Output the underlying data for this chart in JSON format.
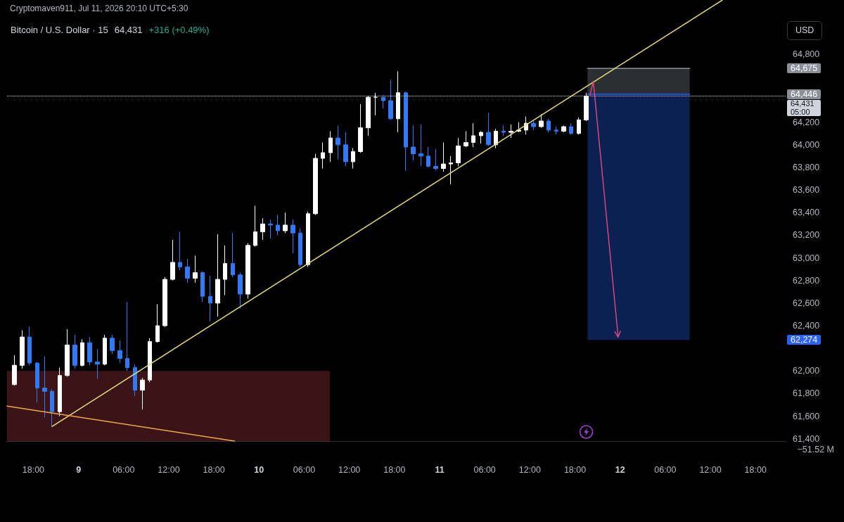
{
  "chart_data": [
    {
      "type": "candlestick",
      "title": "Bitcoin / U.S. Dollar · 15",
      "subtitle": "64,431",
      "ylabel": "USD",
      "annotations": [
        "Cryptomaven911, Jul 11, 2026 20:10 UTC+5:30",
        "+316 (+0.49%)"
      ],
      "x": [
        "2026-07-08T15:30",
        "2026-07-08T16:30",
        "2026-07-08T17:30",
        "2026-07-08T18:30",
        "2026-07-08T19:30",
        "2026-07-08T20:30",
        "2026-07-08T21:30",
        "2026-07-08T22:30",
        "2026-07-08T23:30",
        "2026-07-09T00:30",
        "2026-07-09T01:30",
        "2026-07-09T02:30",
        "2026-07-09T03:30",
        "2026-07-09T04:30",
        "2026-07-09T05:30",
        "2026-07-09T06:30",
        "2026-07-09T07:30",
        "2026-07-09T08:30",
        "2026-07-09T09:30",
        "2026-07-09T10:30",
        "2026-07-09T11:30",
        "2026-07-09T12:30",
        "2026-07-09T13:30",
        "2026-07-09T14:30",
        "2026-07-09T15:30",
        "2026-07-09T16:30",
        "2026-07-09T17:30",
        "2026-07-09T18:30",
        "2026-07-09T19:30",
        "2026-07-09T20:30",
        "2026-07-09T21:30",
        "2026-07-09T22:30",
        "2026-07-09T23:30",
        "2026-07-10T00:30",
        "2026-07-10T01:30",
        "2026-07-10T02:30",
        "2026-07-10T03:30",
        "2026-07-10T04:30",
        "2026-07-10T05:30",
        "2026-07-10T06:30",
        "2026-07-10T07:30",
        "2026-07-10T08:30",
        "2026-07-10T09:30",
        "2026-07-10T10:30",
        "2026-07-10T11:30",
        "2026-07-10T12:30",
        "2026-07-10T13:30",
        "2026-07-10T14:30",
        "2026-07-10T15:30",
        "2026-07-10T16:30",
        "2026-07-10T17:30",
        "2026-07-10T18:30",
        "2026-07-10T19:30",
        "2026-07-10T20:30",
        "2026-07-10T21:30",
        "2026-07-10T22:30",
        "2026-07-10T23:30",
        "2026-07-11T00:30",
        "2026-07-11T01:30",
        "2026-07-11T02:30",
        "2026-07-11T03:30",
        "2026-07-11T04:30",
        "2026-07-11T05:30",
        "2026-07-11T06:30",
        "2026-07-11T07:30",
        "2026-07-11T08:30",
        "2026-07-11T09:30",
        "2026-07-11T10:30",
        "2026-07-11T11:30",
        "2026-07-11T12:30",
        "2026-07-11T13:30",
        "2026-07-11T14:30",
        "2026-07-11T15:30",
        "2026-07-11T16:30",
        "2026-07-11T17:30",
        "2026-07-11T18:30",
        "2026-07-11T19:30"
      ],
      "ohlc": [
        [
          61880,
          62140,
          61870,
          62050
        ],
        [
          62050,
          62360,
          62020,
          62300
        ],
        [
          62300,
          62390,
          62050,
          62070
        ],
        [
          62070,
          62080,
          61720,
          61850
        ],
        [
          61850,
          62130,
          61590,
          61820
        ],
        [
          61820,
          61840,
          61510,
          61640
        ],
        [
          61640,
          62030,
          61600,
          61960
        ],
        [
          61960,
          62370,
          61950,
          62230
        ],
        [
          62230,
          62320,
          62020,
          62050
        ],
        [
          62050,
          62280,
          62040,
          62250
        ],
        [
          62250,
          62300,
          62050,
          62080
        ],
        [
          62080,
          62190,
          61930,
          62060
        ],
        [
          62060,
          62320,
          62050,
          62290
        ],
        [
          62290,
          62320,
          62150,
          62180
        ],
        [
          62180,
          62270,
          62070,
          62110
        ],
        [
          62110,
          62610,
          62000,
          62030
        ],
        [
          62030,
          62060,
          61780,
          61830
        ],
        [
          61830,
          61940,
          61660,
          61920
        ],
        [
          61920,
          62290,
          61900,
          62260
        ],
        [
          62260,
          62590,
          62250,
          62400
        ],
        [
          62400,
          62830,
          62390,
          62810
        ],
        [
          62810,
          63160,
          62800,
          62960
        ],
        [
          62960,
          63230,
          62890,
          62920
        ],
        [
          62920,
          62990,
          62780,
          62820
        ],
        [
          62820,
          63020,
          62780,
          62870
        ],
        [
          62870,
          62880,
          62610,
          62660
        ],
        [
          62660,
          62840,
          62440,
          62600
        ],
        [
          62600,
          63210,
          62480,
          62810
        ],
        [
          62810,
          63110,
          62670,
          62950
        ],
        [
          62950,
          63220,
          62830,
          62850
        ],
        [
          62850,
          62870,
          62550,
          62680
        ],
        [
          62680,
          63130,
          62640,
          63110
        ],
        [
          63110,
          63460,
          63100,
          63230
        ],
        [
          63230,
          63350,
          63160,
          63300
        ],
        [
          63300,
          63340,
          63170,
          63290
        ],
        [
          63290,
          63380,
          63200,
          63240
        ],
        [
          63240,
          63400,
          63220,
          63290
        ],
        [
          63290,
          63340,
          63040,
          63220
        ],
        [
          63220,
          63260,
          62920,
          62940
        ],
        [
          62940,
          63410,
          62920,
          63390
        ],
        [
          63390,
          63920,
          63380,
          63880
        ],
        [
          63880,
          64020,
          63790,
          63930
        ],
        [
          63930,
          64120,
          63850,
          64060
        ],
        [
          64060,
          64170,
          63870,
          64000
        ],
        [
          64000,
          64110,
          63810,
          63850
        ],
        [
          63850,
          63970,
          63790,
          63940
        ],
        [
          63940,
          64360,
          63930,
          64150
        ],
        [
          64150,
          64430,
          64080,
          64420
        ],
        [
          64420,
          64460,
          64260,
          64420
        ],
        [
          64420,
          64440,
          64320,
          64390
        ],
        [
          64390,
          64570,
          64220,
          64230
        ],
        [
          64230,
          64650,
          64110,
          64460
        ],
        [
          64460,
          64470,
          63770,
          63980
        ],
        [
          63980,
          64170,
          63860,
          63920
        ],
        [
          63920,
          64180,
          63810,
          63900
        ],
        [
          63900,
          63980,
          63800,
          63810
        ],
        [
          63810,
          63960,
          63770,
          63790
        ],
        [
          63790,
          64020,
          63760,
          63830
        ],
        [
          63830,
          63900,
          63650,
          63840
        ],
        [
          63840,
          64060,
          63810,
          63990
        ],
        [
          63990,
          64120,
          63980,
          64020
        ],
        [
          64020,
          64190,
          63980,
          64080
        ],
        [
          64080,
          64120,
          64010,
          64110
        ],
        [
          64110,
          64280,
          63990,
          64000
        ],
        [
          64000,
          64140,
          63970,
          64120
        ],
        [
          64120,
          64170,
          64080,
          64110
        ],
        [
          64110,
          64180,
          64060,
          64120
        ],
        [
          64120,
          64200,
          64110,
          64130
        ],
        [
          64130,
          64250,
          64090,
          64190
        ],
        [
          64190,
          64210,
          64130,
          64160
        ],
        [
          64160,
          64270,
          64150,
          64210
        ],
        [
          64210,
          64230,
          64110,
          64130
        ],
        [
          64130,
          64160,
          64090,
          64120
        ],
        [
          64120,
          64170,
          64110,
          64160
        ],
        [
          64160,
          64190,
          64090,
          64100
        ],
        [
          64100,
          64240,
          64090,
          64220
        ],
        [
          64220,
          64460,
          64210,
          64431
        ]
      ],
      "colors": [
        "#ffffff",
        "#ffffff",
        "#3179f5",
        "#3179f5",
        "#3179f5",
        "#3179f5",
        "#ffffff",
        "#ffffff",
        "#3179f5",
        "#ffffff",
        "#3179f5",
        "#3179f5",
        "#ffffff",
        "#3179f5",
        "#3179f5",
        "#3179f5",
        "#3179f5",
        "#ffffff",
        "#ffffff",
        "#ffffff",
        "#ffffff",
        "#ffffff",
        "#3179f5",
        "#3179f5",
        "#ffffff",
        "#3179f5",
        "#3179f5",
        "#ffffff",
        "#ffffff",
        "#3179f5",
        "#3179f5",
        "#ffffff",
        "#ffffff",
        "#ffffff",
        "#3179f5",
        "#3179f5",
        "#ffffff",
        "#3179f5",
        "#3179f5",
        "#ffffff",
        "#ffffff",
        "#ffffff",
        "#ffffff",
        "#3179f5",
        "#3179f5",
        "#ffffff",
        "#ffffff",
        "#ffffff",
        "#ffffff",
        "#3179f5",
        "#3179f5",
        "#ffffff",
        "#3179f5",
        "#3179f5",
        "#3179f5",
        "#3179f5",
        "#3179f5",
        "#ffffff",
        "#ffffff",
        "#ffffff",
        "#ffffff",
        "#ffffff",
        "#ffffff",
        "#3179f5",
        "#ffffff",
        "#3179f5",
        "#ffffff",
        "#ffffff",
        "#ffffff",
        "#3179f5",
        "#ffffff",
        "#3179f5",
        "#3179f5",
        "#ffffff",
        "#3179f5",
        "#ffffff",
        "#ffffff"
      ],
      "series": [
        {
          "type": "area",
          "color": "#3b1418",
          "x": [
            "2026-07-08T14:30",
            "2026-07-10T09:25"
          ],
          "values": [
            62000,
            62000
          ]
        },
        {
          "type": "line",
          "color": "#8c8f99",
          "x": [
            "2026-07-11T19:40",
            "2026-07-12T09:15"
          ],
          "values": [
            64675,
            64675
          ],
          "lower": [
            64446,
            64446
          ],
          "upper": [
            64675,
            64675
          ]
        },
        {
          "type": "line",
          "color": "#2962ff",
          "x": [
            "2026-07-11T19:40",
            "2026-07-12T09:15"
          ],
          "values": [
            64446,
            64446
          ],
          "lower": [
            62274,
            62274
          ],
          "upper": [
            64446,
            64446
          ]
        },
        {
          "type": "line",
          "color": "#e5dd7a",
          "x": [
            "2026-07-08T20:30",
            "2026-07-12T13:36"
          ],
          "values": [
            61510,
            65280
          ]
        },
        {
          "type": "line",
          "color": "#f2a742",
          "x": [
            "2026-07-08T14:30",
            "2026-07-09T20:45"
          ],
          "values": [
            61690,
            61380
          ]
        }
      ],
      "xlim": [
        "2026-07-08T14:30",
        "2026-07-12T22:00"
      ],
      "ylim": [
        61380,
        65280
      ],
      "xticks": [
        {
          "value": "2026-07-08T18:00",
          "label": "18:00"
        },
        {
          "value": "2026-07-09T00:00",
          "label": "9"
        },
        {
          "value": "2026-07-09T06:00",
          "label": "06:00"
        },
        {
          "value": "2026-07-09T12:00",
          "label": "12:00"
        },
        {
          "value": "2026-07-09T18:00",
          "label": "18:00"
        },
        {
          "value": "2026-07-10T00:00",
          "label": "10"
        },
        {
          "value": "2026-07-10T06:00",
          "label": "06:00"
        },
        {
          "value": "2026-07-10T12:00",
          "label": "12:00"
        },
        {
          "value": "2026-07-10T18:00",
          "label": "18:00"
        },
        {
          "value": "2026-07-11T00:00",
          "label": "11"
        },
        {
          "value": "2026-07-11T06:00",
          "label": "06:00"
        },
        {
          "value": "2026-07-11T12:00",
          "label": "12:00"
        },
        {
          "value": "2026-07-11T18:00",
          "label": "18:00"
        },
        {
          "value": "2026-07-12T00:00",
          "label": "12"
        },
        {
          "value": "2026-07-12T06:00",
          "label": "06:00"
        },
        {
          "value": "2026-07-12T12:00",
          "label": "12:00"
        },
        {
          "value": "2026-07-12T18:00",
          "label": "18:00"
        }
      ],
      "yticks": [
        {
          "value": 61400,
          "label": "61,400"
        },
        {
          "value": 61600,
          "label": "61,600"
        },
        {
          "value": 61800,
          "label": "61,800"
        },
        {
          "value": 62000,
          "label": "62,000"
        },
        {
          "value": 62274,
          "label": "62,274"
        },
        {
          "value": 62400,
          "label": "62,400"
        },
        {
          "value": 62600,
          "label": "62,600"
        },
        {
          "value": 62800,
          "label": "62,800"
        },
        {
          "value": 63000,
          "label": "63,000"
        },
        {
          "value": 63200,
          "label": "63,200"
        },
        {
          "value": 63400,
          "label": "63,400"
        },
        {
          "value": 63600,
          "label": "63,600"
        },
        {
          "value": 63800,
          "label": "63,800"
        },
        {
          "value": 64000,
          "label": "64,000"
        },
        {
          "value": 64200,
          "label": "64,200"
        },
        {
          "value": 64446,
          "label": "64,446"
        },
        {
          "value": 64675,
          "label": "64,675"
        },
        {
          "value": 64800,
          "label": "64,800"
        }
      ],
      "ref_lines": [
        {
          "axis": "y",
          "value": 64431,
          "label": "64,431\n05:00",
          "color": "#d1d4dc",
          "line_style": "dotted"
        }
      ]
    },
    {
      "type": "other",
      "annotations": [
        "−51.52 M"
      ]
    }
  ]
}
